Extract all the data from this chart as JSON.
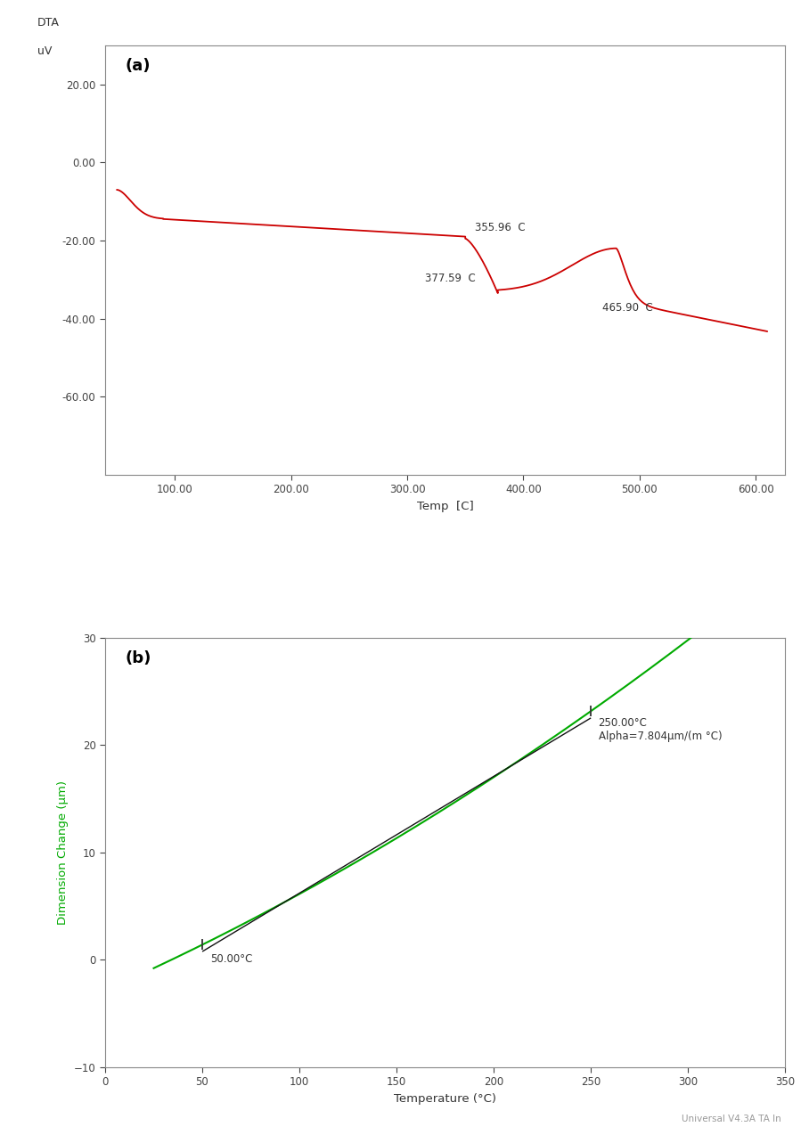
{
  "fig_width": 9.08,
  "fig_height": 12.74,
  "bg_color": "#ffffff",
  "dta": {
    "label_a": "(a)",
    "ylabel_line1": "DTA",
    "ylabel_line2": "uV",
    "xlabel": "Temp  [C]",
    "xlim": [
      40,
      625
    ],
    "ylim": [
      -80,
      30
    ],
    "yticks": [
      20.0,
      0.0,
      -20.0,
      -40.0,
      -60.0
    ],
    "xticks": [
      100.0,
      200.0,
      300.0,
      400.0,
      500.0,
      600.0
    ],
    "line_color": "#cc0000",
    "annot1_text": "355.96  C",
    "annot2_text": "377.59  C",
    "annot3_text": "465.90  C",
    "tick_color": "#444444",
    "spine_color": "#888888"
  },
  "tma": {
    "label_b": "(b)",
    "ylabel": "Dimension Change (μm)",
    "xlabel": "Temperature (°C)",
    "xlim": [
      0,
      350
    ],
    "ylim": [
      -10,
      30
    ],
    "yticks": [
      -10,
      0,
      10,
      20,
      30
    ],
    "xticks": [
      0,
      50,
      100,
      150,
      200,
      250,
      300,
      350
    ],
    "line_color": "#00aa00",
    "annot1_text": "50.00°C",
    "annot2_text": "250.00°C\nAlpha=7.804μm/(m °C)",
    "watermark": "Universal V4.3A TA In",
    "tick_color": "#444444",
    "spine_color": "#888888",
    "ylabel_color": "#00aa00"
  }
}
